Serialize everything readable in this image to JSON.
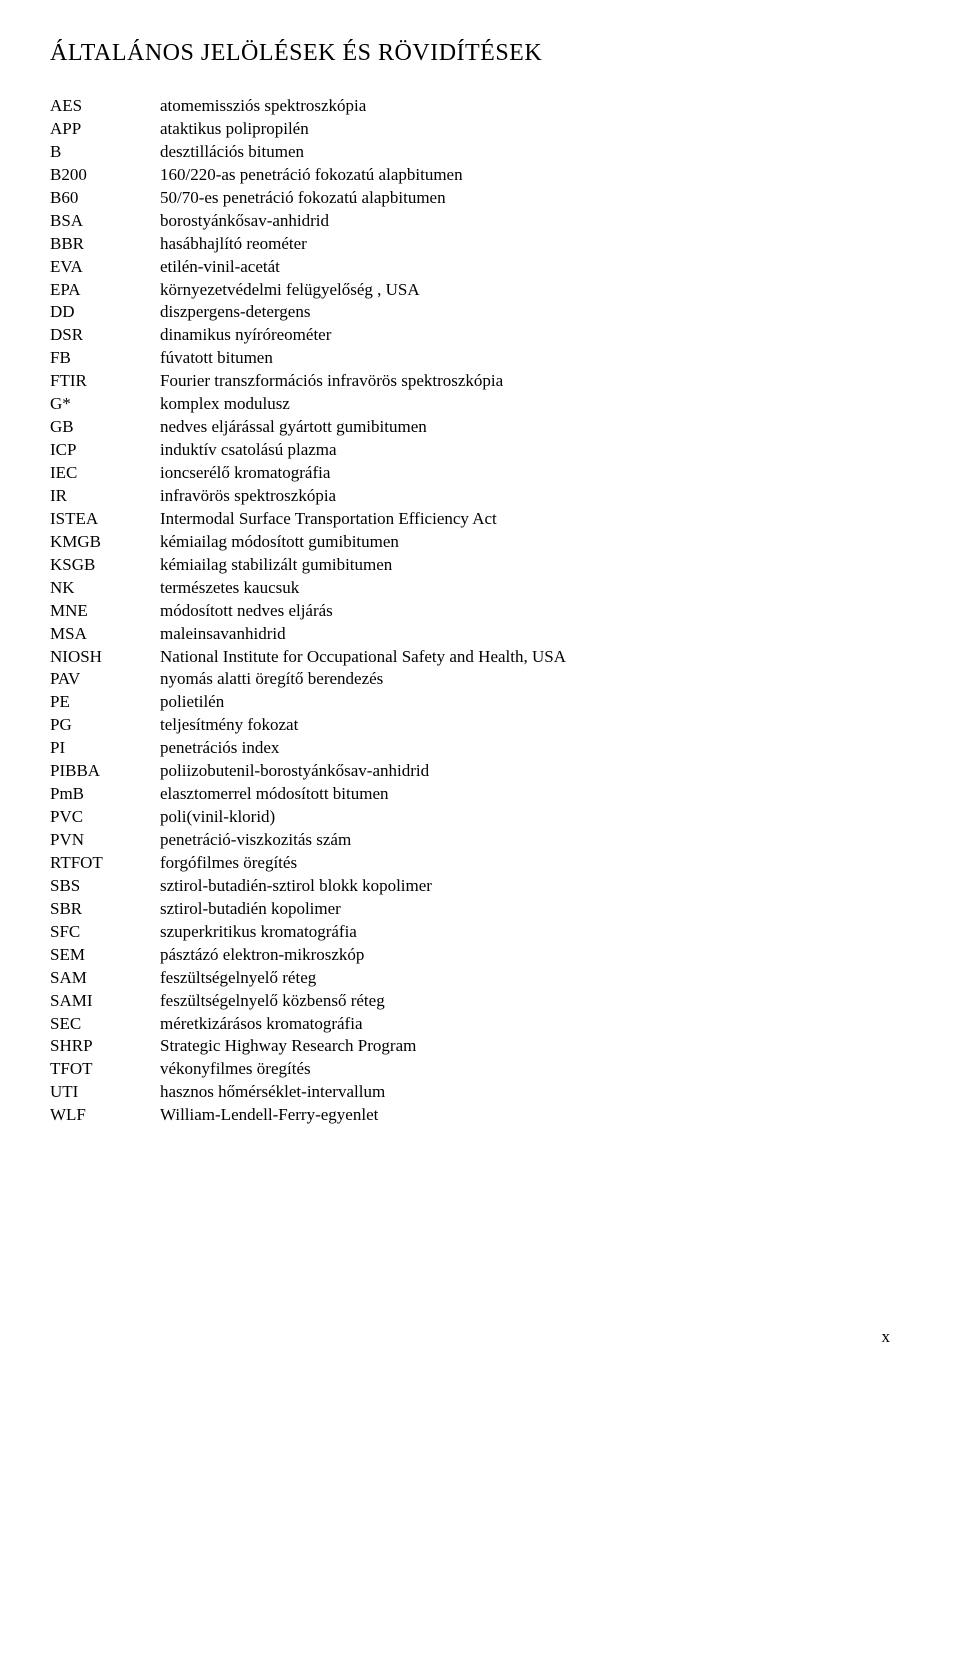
{
  "title": "ÁLTALÁNOS JELÖLÉSEK ÉS RÖVIDÍTÉSEK",
  "page_number": "x",
  "entries": [
    {
      "code": "AES",
      "desc": "atomemissziós spektroszkópia"
    },
    {
      "code": "APP",
      "desc": "ataktikus polipropilén"
    },
    {
      "code": "B",
      "desc": "desztillációs bitumen"
    },
    {
      "code": "B200",
      "desc": "160/220-as penetráció fokozatú alapbitumen"
    },
    {
      "code": "B60",
      "desc": "50/70-es penetráció fokozatú alapbitumen"
    },
    {
      "code": "BSA",
      "desc": "borostyánkősav-anhidrid"
    },
    {
      "code": "BBR",
      "desc": "hasábhajlító reométer"
    },
    {
      "code": "EVA",
      "desc": "etilén-vinil-acetát"
    },
    {
      "code": "EPA",
      "desc": "környezetvédelmi felügyelőség , USA"
    },
    {
      "code": "DD",
      "desc": "diszpergens-detergens"
    },
    {
      "code": "DSR",
      "desc": "dinamikus nyíróreométer"
    },
    {
      "code": "FB",
      "desc": "fúvatott bitumen"
    },
    {
      "code": "FTIR",
      "desc": "Fourier transzformációs infravörös spektroszkópia"
    },
    {
      "code": "G*",
      "desc": "komplex modulusz"
    },
    {
      "code": "GB",
      "desc": "nedves eljárással gyártott gumibitumen"
    },
    {
      "code": "ICP",
      "desc": "induktív csatolású plazma"
    },
    {
      "code": "IEC",
      "desc": "ioncserélő kromatográfia"
    },
    {
      "code": "IR",
      "desc": "infravörös spektroszkópia"
    },
    {
      "code": "ISTEA",
      "desc": "Intermodal Surface Transportation Efficiency Act"
    },
    {
      "code": "KMGB",
      "desc": "kémiailag módosított gumibitumen"
    },
    {
      "code": "KSGB",
      "desc": "kémiailag stabilizált gumibitumen"
    },
    {
      "code": "NK",
      "desc": "természetes kaucsuk"
    },
    {
      "code": "MNE",
      "desc": "módosított nedves eljárás"
    },
    {
      "code": "MSA",
      "desc": "maleinsavanhidrid"
    },
    {
      "code": "NIOSH",
      "desc": "National Institute for Occupational Safety and Health, USA"
    },
    {
      "code": "PAV",
      "desc": "nyomás alatti öregítő berendezés"
    },
    {
      "code": "PE",
      "desc": "polietilén"
    },
    {
      "code": "PG",
      "desc": "teljesítmény fokozat"
    },
    {
      "code": "PI",
      "desc": "penetrációs index"
    },
    {
      "code": "PIBBA",
      "desc": "poliizobutenil-borostyánkősav-anhidrid"
    },
    {
      "code": "PmB",
      "desc": "elasztomerrel módosított bitumen"
    },
    {
      "code": "PVC",
      "desc": "poli(vinil-klorid)"
    },
    {
      "code": "PVN",
      "desc": "penetráció-viszkozitás szám"
    },
    {
      "code": "RTFOT",
      "desc": "forgófilmes öregítés"
    },
    {
      "code": "SBS",
      "desc": "sztirol-butadién-sztirol blokk kopolimer"
    },
    {
      "code": "SBR",
      "desc": "sztirol-butadién kopolimer"
    },
    {
      "code": "SFC",
      "desc": "szuperkritikus kromatográfia"
    },
    {
      "code": "SEM",
      "desc": "pásztázó elektron-mikroszkóp"
    },
    {
      "code": "SAM",
      "desc": "feszültségelnyelő réteg"
    },
    {
      "code": "SAMI",
      "desc": "feszültségelnyelő közbenső réteg"
    },
    {
      "code": "SEC",
      "desc": "méretkizárásos kromatográfia"
    },
    {
      "code": "SHRP",
      "desc": "Strategic Highway Research Program"
    },
    {
      "code": "TFOT",
      "desc": "vékonyfilmes öregítés"
    },
    {
      "code": "UTI",
      "desc": "hasznos hőmérséklet-intervallum"
    },
    {
      "code": "WLF",
      "desc": "William-Lendell-Ferry-egyenlet"
    }
  ]
}
